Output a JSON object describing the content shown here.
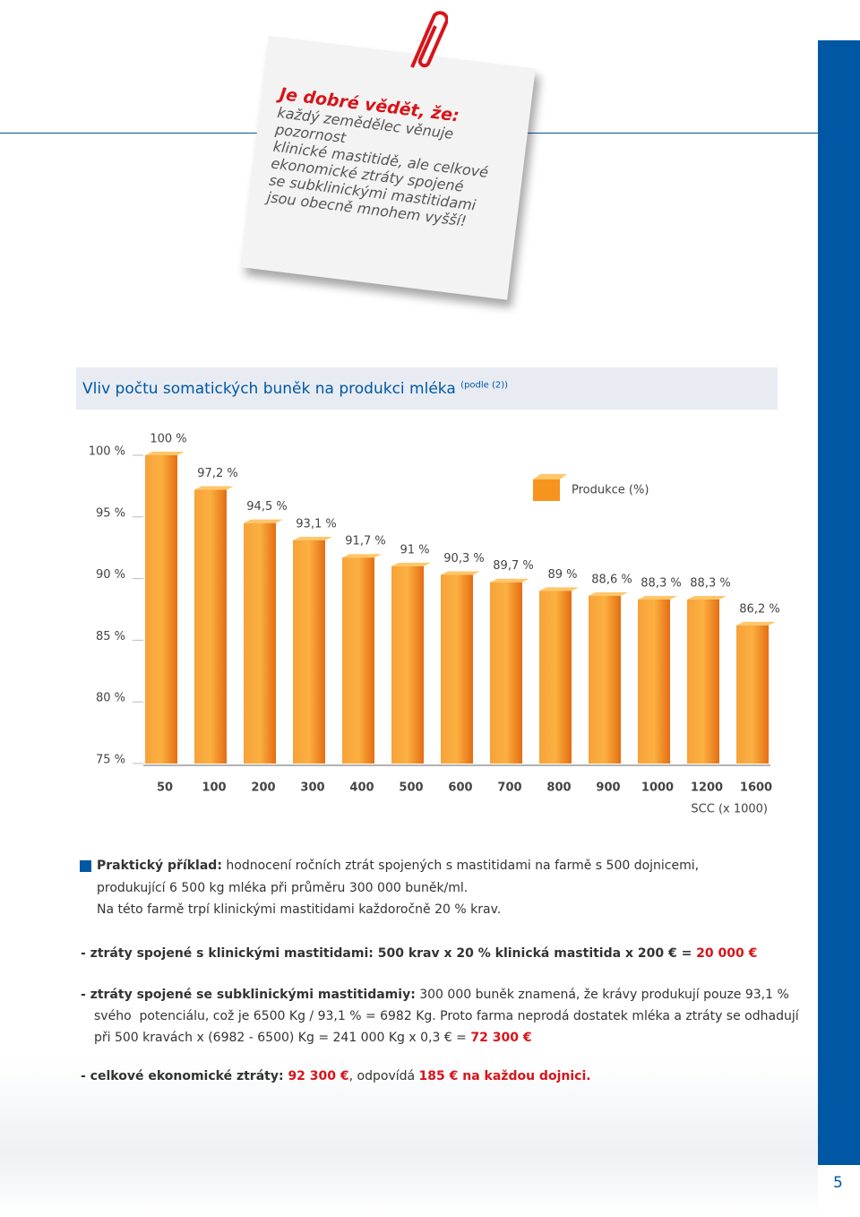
{
  "note": {
    "title": "Je dobré vědět, že:",
    "lines": [
      "každý zemědělec věnuje pozornost",
      "klinické mastitidě, ale celkové",
      "ekonomické ztráty spojené",
      "se subklinickými mastitidami",
      "jsou obecně mnohem vyšší!"
    ]
  },
  "chart_heading": {
    "text": "Vliv počtu somatických buněk na produkci mléka",
    "source": "(podle (2))"
  },
  "chart_data": {
    "type": "bar",
    "x_label": "SCC (x 1000)",
    "categories": [
      "50",
      "100",
      "200",
      "300",
      "400",
      "500",
      "600",
      "700",
      "800",
      "900",
      "1000",
      "1200",
      "1600"
    ],
    "series": [
      {
        "name": "Produkce (%)",
        "color": "#f7941d",
        "values": [
          100,
          97.2,
          94.5,
          93.1,
          91.7,
          91,
          90.3,
          89.7,
          89,
          88.6,
          88.3,
          88.3,
          86.2
        ],
        "value_labels": [
          "100 %",
          "97,2 %",
          "94,5 %",
          "93,1 %",
          "91,7 %",
          "91 %",
          "90,3 %",
          "89,7 %",
          "89 %",
          "88,6 %",
          "88,3 %",
          "88,3 %",
          "86,2 %"
        ]
      }
    ],
    "ylim": [
      75,
      100
    ],
    "yticks": [
      {
        "value": 75,
        "label": "75 %"
      },
      {
        "value": 80,
        "label": "80 %"
      },
      {
        "value": 85,
        "label": "85 %"
      },
      {
        "value": 90,
        "label": "90 %"
      },
      {
        "value": 95,
        "label": "95 %"
      },
      {
        "value": 100,
        "label": "100 %"
      }
    ],
    "grid": true
  },
  "example": {
    "label": "Praktický příklad:",
    "lines": [
      " hodnocení ročních ztrát spojených s mastitidami na farmě s 500 dojnicemi,",
      "produkující 6 500 kg mléka při průměru 300 000 buněk/ml.",
      "Na této farmě trpí klinickými mastitidami každoročně 20 % krav."
    ]
  },
  "losses": [
    [
      "- ztráty spojené s klinickými mastitidami: 500 krav x 20 % klinická mastitida x 200 € = ",
      "20 000 €"
    ],
    [
      "- ztráty spojené se subklinickými mastitidamiy:",
      " 300 000 buněk znamená, že krávy produkují pouze 93,1 %",
      "svého  potenciálu, což je 6500 Kg / 93,1 % = 6982 Kg. Proto farma neprodá dostatek mléka a ztráty se odhadují",
      "při 500 kravách x (6982 - 6500) Kg = 241 000 Kg x 0,3 € = ",
      "72 300 €"
    ],
    [
      "- celkové ekonomické ztráty: ",
      "92 300 €",
      ", odpovídá ",
      "185 € na každou dojnici."
    ]
  ],
  "page_number": "5"
}
